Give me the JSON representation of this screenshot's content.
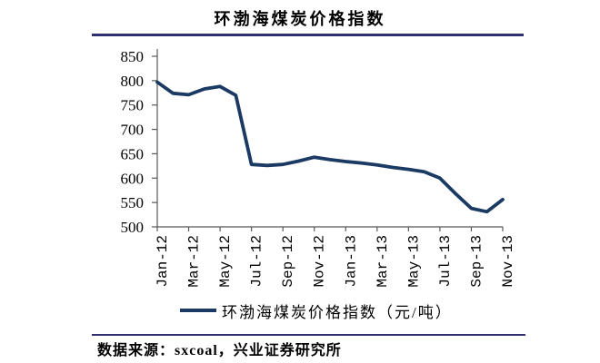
{
  "title": "环渤海煤炭价格指数",
  "legend": {
    "label": "环渤海煤炭价格指数（元/吨）"
  },
  "footer": {
    "source": "数据来源：sxcoal，兴业证券研究所"
  },
  "colors": {
    "line": "#1b3a63",
    "rule": "#2f2f72",
    "axis": "#595959",
    "text": "#000000"
  },
  "chart_data": {
    "type": "line",
    "title": "环渤海煤炭价格指数",
    "x": [
      "Jan-12",
      "Feb-12",
      "Mar-12",
      "Apr-12",
      "May-12",
      "Jun-12",
      "Jul-12",
      "Aug-12",
      "Sep-12",
      "Oct-12",
      "Nov-12",
      "Dec-12",
      "Jan-13",
      "Feb-13",
      "Mar-13",
      "Apr-13",
      "May-13",
      "Jun-13",
      "Jul-13",
      "Aug-13",
      "Sep-13",
      "Oct-13",
      "Nov-13"
    ],
    "series": [
      {
        "name": "环渤海煤炭价格指数（元/吨）",
        "values": [
          797,
          774,
          771,
          783,
          788,
          770,
          628,
          626,
          628,
          635,
          643,
          638,
          634,
          631,
          627,
          622,
          618,
          613,
          600,
          568,
          538,
          531,
          556
        ]
      }
    ],
    "ylabel": "",
    "xlabel": "",
    "ylim": [
      500,
      850
    ],
    "yticks": [
      500,
      550,
      600,
      650,
      700,
      750,
      800,
      850
    ],
    "x_tick_every": 2,
    "grid": false,
    "legend_position": "bottom"
  }
}
